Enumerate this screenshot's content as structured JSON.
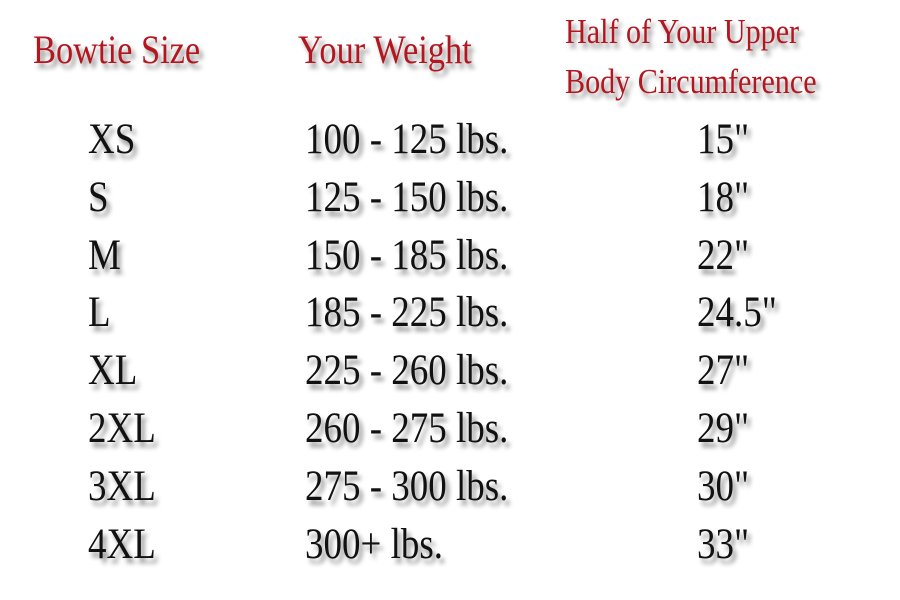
{
  "headers": {
    "size": "Bowtie Size",
    "weight": "Your Weight",
    "circumference_line1": "Half of Your Upper",
    "circumference_line2": "Body Circumference"
  },
  "header_color": "#b3161f",
  "rows": [
    {
      "size": "XS",
      "weight": "100 - 125 lbs.",
      "circumference": "15\""
    },
    {
      "size": "S",
      "weight": "125 - 150 lbs.",
      "circumference": "18\""
    },
    {
      "size": "M",
      "weight": "150 - 185 lbs.",
      "circumference": "22\""
    },
    {
      "size": "L",
      "weight": "185 - 225 lbs.",
      "circumference": "24.5\""
    },
    {
      "size": "XL",
      "weight": "225 - 260 lbs.",
      "circumference": "27\""
    },
    {
      "size": "2XL",
      "weight": "260 - 275 lbs.",
      "circumference": "29\""
    },
    {
      "size": "3XL",
      "weight": "275 - 300 lbs.",
      "circumference": "30\""
    },
    {
      "size": "4XL",
      "weight": "300+ lbs.",
      "circumference": "33\""
    }
  ]
}
